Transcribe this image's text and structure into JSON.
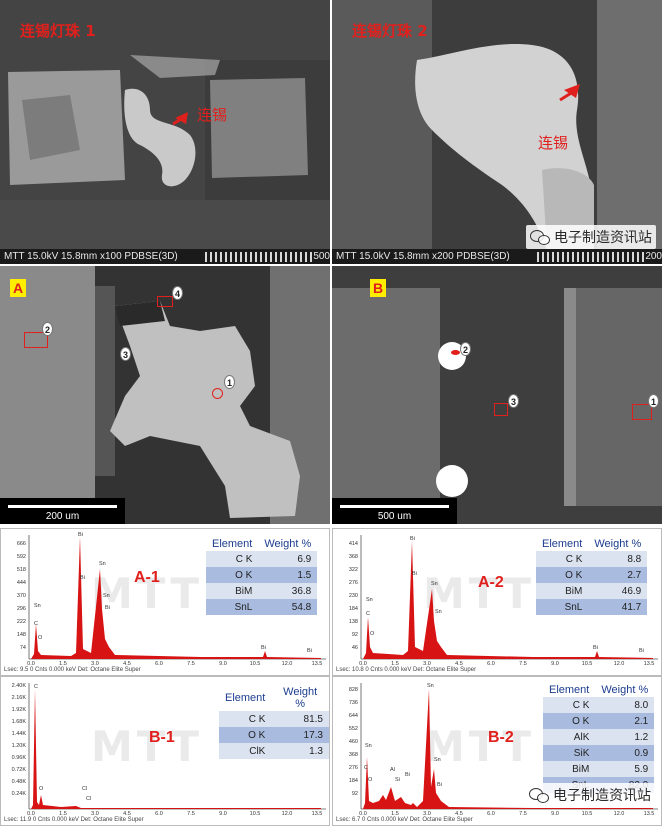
{
  "sem_panels": {
    "p1": {
      "label": "连锡灯珠 1",
      "arrow_label": "连锡",
      "footer": "MTT 15.0kV 15.8mm x100 PDBSE(3D)",
      "footer_end": "500"
    },
    "p2": {
      "label": "连锡灯珠 2",
      "arrow_label": "连锡",
      "footer": "MTT 15.0kV 15.8mm x200 PDBSE(3D)",
      "footer_end": "200"
    },
    "p3": {
      "tag": "A",
      "scale": "200 um",
      "points": [
        "1",
        "2",
        "3",
        "4"
      ]
    },
    "p4": {
      "tag": "B",
      "scale": "500 um",
      "points": [
        "1",
        "2",
        "3"
      ]
    }
  },
  "watermark": "电子制造资讯站",
  "spectra": {
    "a1": {
      "label": "A-1",
      "yticks": [
        "666",
        "592",
        "518",
        "444",
        "370",
        "296",
        "222",
        "148",
        "74"
      ],
      "xticks": [
        "0.0",
        "1.5",
        "3.0",
        "4.5",
        "6.0",
        "7.5",
        "9.0",
        "10.5",
        "12.0",
        "13.5"
      ],
      "footer": "Lsec: 9.5    0 Cnts    0.000 keV    Det: Octane Elite Super",
      "peak_labels": [
        "Bi",
        "Sn",
        "Sn",
        "Bi",
        "Bi",
        "Sn",
        "C",
        "O",
        "Bi",
        "Bi"
      ],
      "table": {
        "h1": "Element",
        "h2": "Weight %",
        "rows": [
          [
            "C K",
            "6.9"
          ],
          [
            "O K",
            "1.5"
          ],
          [
            "BiM",
            "36.8"
          ],
          [
            "SnL",
            "54.8"
          ]
        ]
      }
    },
    "a2": {
      "label": "A-2",
      "yticks": [
        "414",
        "368",
        "322",
        "276",
        "230",
        "184",
        "138",
        "92",
        "46"
      ],
      "xticks": [
        "0.0",
        "1.5",
        "3.0",
        "4.5",
        "6.0",
        "7.5",
        "9.0",
        "10.5",
        "12.0",
        "13.5"
      ],
      "footer": "Lsec: 10.8    0 Cnts    0.000 keV    Det: Octane Elite Super",
      "peak_labels": [
        "Bi",
        "Sn",
        "Sn",
        "Bi",
        "Sn",
        "C",
        "O",
        "Bi",
        "Bi"
      ],
      "table": {
        "h1": "Element",
        "h2": "Weight %",
        "rows": [
          [
            "C K",
            "8.8"
          ],
          [
            "O K",
            "2.7"
          ],
          [
            "BiM",
            "46.9"
          ],
          [
            "SnL",
            "41.7"
          ]
        ]
      }
    },
    "b1": {
      "label": "B-1",
      "yticks": [
        "2.40K",
        "2.16K",
        "1.92K",
        "1.68K",
        "1.44K",
        "1.20K",
        "0.96K",
        "0.72K",
        "0.48K",
        "0.24K"
      ],
      "xticks": [
        "0.0",
        "1.5",
        "3.0",
        "4.5",
        "6.0",
        "7.5",
        "9.0",
        "10.5",
        "12.0",
        "13.5"
      ],
      "footer": "Lsec: 11.9    0 Cnts    0.000 keV    Det: Octane Elite Super",
      "peak_labels": [
        "C",
        "O",
        "Cl",
        "Cl"
      ],
      "table": {
        "h1": "Element",
        "h2": "Weight %",
        "rows": [
          [
            "C K",
            "81.5"
          ],
          [
            "O K",
            "17.3"
          ],
          [
            "ClK",
            "1.3"
          ]
        ]
      }
    },
    "b2": {
      "label": "B-2",
      "yticks": [
        "828",
        "736",
        "644",
        "552",
        "460",
        "368",
        "276",
        "184",
        "92"
      ],
      "xticks": [
        "0.0",
        "1.5",
        "3.0",
        "4.5",
        "6.0",
        "7.5",
        "9.0",
        "10.5",
        "12.0",
        "13.5"
      ],
      "footer": "Lsec: 6.7    0 Cnts    0.000 keV    Det: Octane Elite Super",
      "peak_labels": [
        "Sn",
        "Sn",
        "C",
        "O",
        "Al",
        "Si",
        "Bi",
        "Sn",
        "Bi"
      ],
      "table": {
        "h1": "Element",
        "h2": "Weight %",
        "rows": [
          [
            "C K",
            "8.0"
          ],
          [
            "O K",
            "2.1"
          ],
          [
            "AlK",
            "1.2"
          ],
          [
            "SiK",
            "0.9"
          ],
          [
            "BiM",
            "5.9"
          ],
          [
            "SnL",
            "82.0"
          ]
        ]
      }
    }
  },
  "colors": {
    "accent_red": "#e0201c",
    "tag_yellow": "#ffee00",
    "table_header": "#1c3d8f"
  }
}
